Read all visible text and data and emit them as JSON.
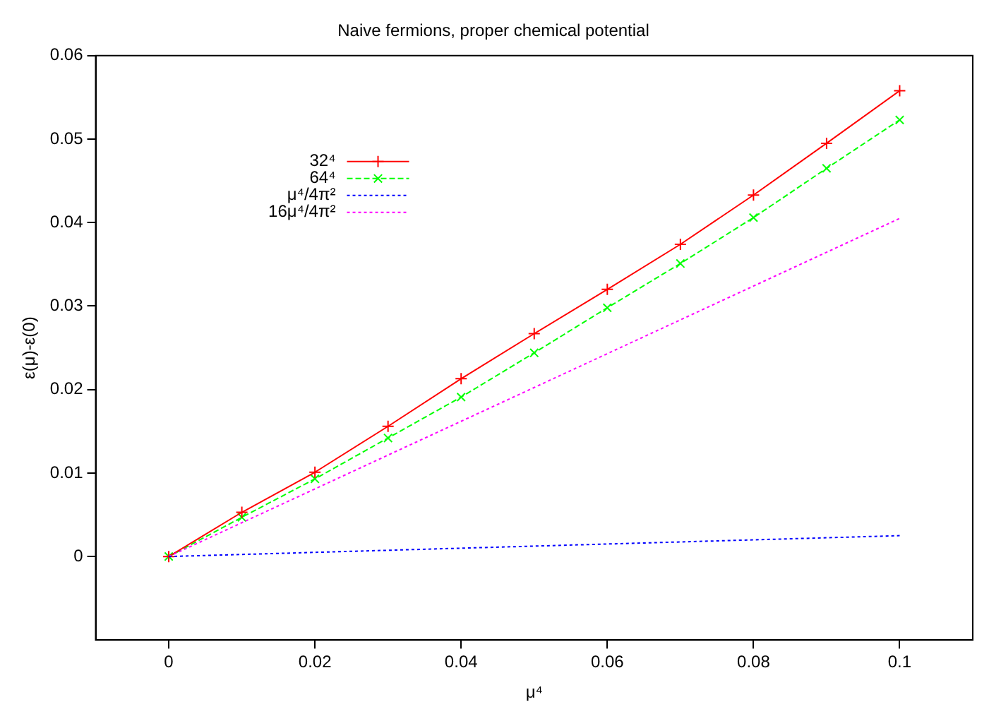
{
  "chart_data": {
    "type": "line",
    "title": "Naive fermions, proper chemical potential",
    "xlabel": "μ⁴",
    "ylabel": "ε(μ)-ε(0)",
    "xlim": [
      -0.01,
      0.11
    ],
    "xticks": [
      0,
      0.02,
      0.04,
      0.06,
      0.08,
      0.1
    ],
    "ylim": [
      -0.01,
      0.06
    ],
    "yticks": [
      0,
      0.01,
      0.02,
      0.03,
      0.04,
      0.05,
      0.06
    ],
    "grid": false,
    "legend": "top left",
    "series": [
      {
        "name": "32⁴",
        "color": "#ff0000",
        "marker": "cross",
        "line_style": "solid",
        "x": [
          0,
          0.01,
          0.02,
          0.03,
          0.04,
          0.05,
          0.06,
          0.07,
          0.08,
          0.09,
          0.1
        ],
        "values": [
          0,
          0.0053,
          0.0101,
          0.0156,
          0.0213,
          0.0267,
          0.032,
          0.0374,
          0.0433,
          0.0495,
          0.0558
        ]
      },
      {
        "name": "64⁴",
        "color": "#00ff00",
        "marker": "x",
        "line_style": "dashed",
        "x": [
          0,
          0.01,
          0.02,
          0.03,
          0.04,
          0.05,
          0.06,
          0.07,
          0.08,
          0.09,
          0.1
        ],
        "values": [
          0,
          0.0047,
          0.0093,
          0.0142,
          0.0191,
          0.0244,
          0.0298,
          0.0351,
          0.0406,
          0.0465,
          0.0523
        ]
      },
      {
        "name": "μ⁴/4π²",
        "color": "#0000ff",
        "marker": "none",
        "line_style": "dotted",
        "x": [
          0,
          0.1
        ],
        "values": [
          0,
          0.0025
        ]
      },
      {
        "name": "16μ⁴/4π²",
        "color": "#ff00ff",
        "marker": "none",
        "line_style": "dotted",
        "x": [
          0,
          0.1
        ],
        "values": [
          0,
          0.0405
        ]
      }
    ]
  }
}
